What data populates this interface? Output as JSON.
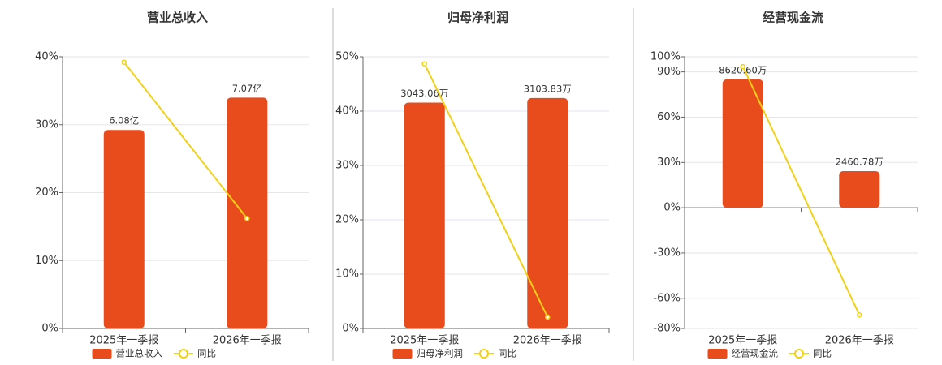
{
  "chart_data": [
    {
      "type": "bar",
      "title": "营业总收入",
      "categories": [
        "2025年一季报",
        "2026年一季报"
      ],
      "series": [
        {
          "name": "营业总收入",
          "type": "bar",
          "axis": "y2",
          "color": "#e84c1c",
          "values": [
            6.08,
            7.07
          ],
          "value_labels": [
            "6.08亿",
            "7.07亿"
          ]
        },
        {
          "name": "同比",
          "type": "line",
          "color": "#f2d016",
          "values": [
            39.2,
            16.2
          ]
        }
      ],
      "ylim": [
        0,
        40
      ],
      "yticks": [
        {
          "value": 0,
          "label": "0%"
        },
        {
          "value": 10,
          "label": "10%"
        },
        {
          "value": 20,
          "label": "20%"
        },
        {
          "value": 30,
          "label": "30%"
        },
        {
          "value": 40,
          "label": "40%"
        }
      ],
      "y2lim": [
        0,
        8.32
      ],
      "grid": true
    },
    {
      "type": "bar",
      "title": "归母净利润",
      "categories": [
        "2025年一季报",
        "2026年一季报"
      ],
      "series": [
        {
          "name": "归母净利润",
          "type": "bar",
          "axis": "y2",
          "color": "#e84c1c",
          "values": [
            3043.06,
            3103.83
          ],
          "value_labels": [
            "3043.06万",
            "3103.83万"
          ]
        },
        {
          "name": "同比",
          "type": "line",
          "color": "#f2d016",
          "values": [
            48.7,
            2.1
          ]
        }
      ],
      "ylim": [
        0,
        50
      ],
      "yticks": [
        {
          "value": 0,
          "label": "0%"
        },
        {
          "value": 10,
          "label": "10%"
        },
        {
          "value": 20,
          "label": "20%"
        },
        {
          "value": 30,
          "label": "30%"
        },
        {
          "value": 40,
          "label": "40%"
        },
        {
          "value": 50,
          "label": "50%"
        }
      ],
      "y2lim": [
        0,
        3660
      ],
      "grid": true
    },
    {
      "type": "bar",
      "title": "经营现金流",
      "categories": [
        "2025年一季报",
        "2026年一季报"
      ],
      "series": [
        {
          "name": "经营现金流",
          "type": "bar",
          "axis": "y2",
          "color": "#e84c1c",
          "values": [
            8620.6,
            2460.78
          ],
          "value_labels": [
            "8620.60万",
            "2460.78万"
          ]
        },
        {
          "name": "同比",
          "type": "line",
          "color": "#f2d016",
          "values": [
            93.5,
            -71
          ]
        }
      ],
      "ylim": [
        -80,
        100
      ],
      "yticks": [
        {
          "value": -80,
          "label": "-80%"
        },
        {
          "value": -60,
          "label": "-60%"
        },
        {
          "value": -30,
          "label": "-30%"
        },
        {
          "value": 0,
          "label": "0%"
        },
        {
          "value": 30,
          "label": "30%"
        },
        {
          "value": 60,
          "label": "60%"
        },
        {
          "value": 90,
          "label": "90%"
        },
        {
          "value": 100,
          "label": "100%"
        }
      ],
      "y2lim": [
        -8114,
        10142
      ],
      "grid": true
    }
  ]
}
